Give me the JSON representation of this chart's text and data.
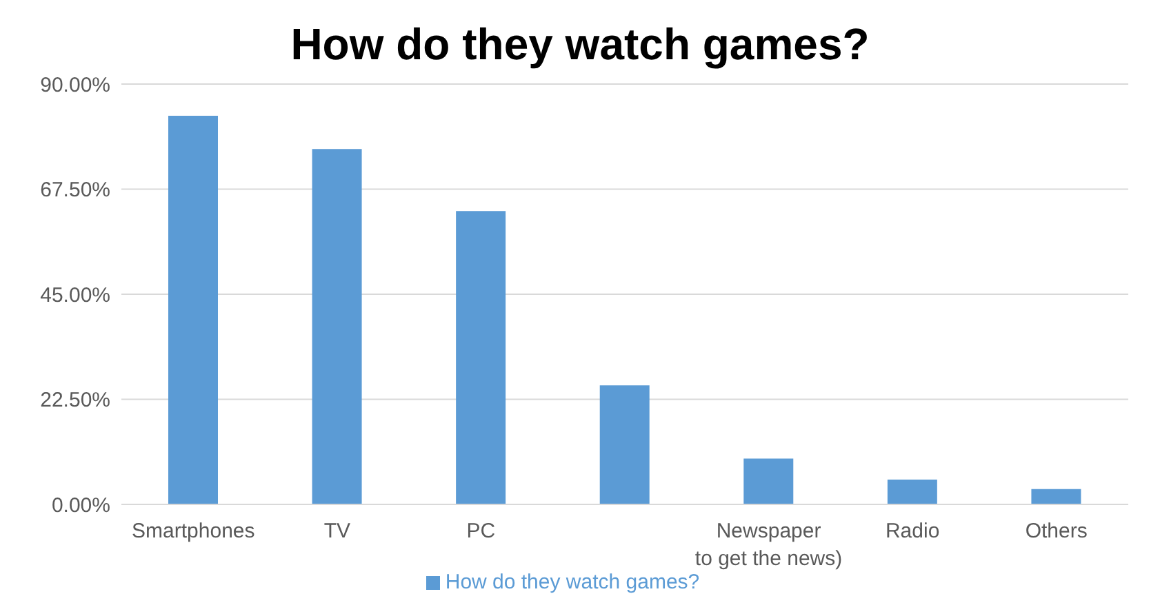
{
  "chart_data": {
    "type": "bar",
    "title": "How do they watch games?",
    "categories": [
      "Smartphones",
      "TV",
      "PC",
      null,
      "Newspaper to get the news)",
      "Radio",
      "Others"
    ],
    "series": [
      {
        "name": "How do they watch games?",
        "color": "#5b9bd5",
        "values": [
          83.2,
          76.1,
          62.8,
          25.5,
          9.8,
          5.3,
          3.3
        ]
      }
    ],
    "ylim": [
      0,
      90
    ],
    "yticks": [
      {
        "value": 0,
        "label": "0.00%"
      },
      {
        "value": 22.5,
        "label": "22.50%"
      },
      {
        "value": 45,
        "label": "45.00%"
      },
      {
        "value": 67.5,
        "label": "67.50%"
      },
      {
        "value": 90,
        "label": "90.00%"
      }
    ],
    "grid": "y",
    "legend": "bottom"
  }
}
